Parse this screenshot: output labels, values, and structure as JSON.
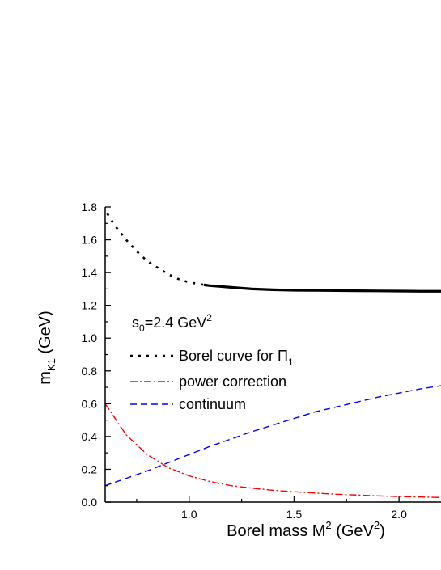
{
  "chart_data": {
    "type": "line",
    "title": "",
    "xlabel": "Borel mass M",
    "xlabel_sup": "2",
    "xlabel_unit_open": " (GeV",
    "xlabel_unit_sup": "2",
    "xlabel_unit_close": ")",
    "ylabel": "m",
    "ylabel_sub": "K1",
    "ylabel_unit": " (GeV)",
    "xlim": [
      0.6,
      2.2
    ],
    "ylim": [
      0.0,
      1.8
    ],
    "x_ticks": [
      1.0,
      1.5,
      2.0
    ],
    "x_tick_labels": [
      "1.0",
      "1.5",
      "2.0"
    ],
    "y_ticks": [
      0.0,
      0.2,
      0.4,
      0.6,
      0.8,
      1.0,
      1.2,
      1.4,
      1.6,
      1.8
    ],
    "y_tick_labels": [
      "0.0",
      "0.2",
      "0.4",
      "0.6",
      "0.8",
      "1.0",
      "1.2",
      "1.4",
      "1.6",
      "1.8"
    ],
    "annotation": {
      "s_base": "s",
      "s_sub": "0",
      "s_value": "=2.4 GeV",
      "s_sup": "2"
    },
    "series": [
      {
        "name": "Borel curve for Π",
        "name_sub": "1",
        "color": "#000000",
        "style": "dotted-then-solid",
        "solid_from_x": 1.07,
        "x": [
          0.61,
          0.65,
          0.7,
          0.75,
          0.8,
          0.85,
          0.9,
          0.95,
          1.0,
          1.05,
          1.07,
          1.1,
          1.2,
          1.3,
          1.4,
          1.5,
          1.6,
          1.7,
          1.8,
          1.9,
          2.0,
          2.1,
          2.2
        ],
        "values": [
          1.76,
          1.68,
          1.6,
          1.53,
          1.47,
          1.43,
          1.39,
          1.36,
          1.34,
          1.33,
          1.325,
          1.32,
          1.31,
          1.3,
          1.295,
          1.292,
          1.291,
          1.29,
          1.289,
          1.288,
          1.287,
          1.286,
          1.286
        ]
      },
      {
        "name": "power correction",
        "color": "#ff0000",
        "style": "dash-dot",
        "x": [
          0.6,
          0.7,
          0.8,
          0.9,
          1.0,
          1.1,
          1.2,
          1.3,
          1.4,
          1.5,
          1.6,
          1.7,
          1.8,
          1.9,
          2.0,
          2.1,
          2.2
        ],
        "values": [
          0.6,
          0.41,
          0.29,
          0.21,
          0.16,
          0.125,
          0.1,
          0.085,
          0.072,
          0.063,
          0.055,
          0.048,
          0.043,
          0.038,
          0.034,
          0.031,
          0.028
        ]
      },
      {
        "name": "continuum",
        "color": "#0000ff",
        "style": "dashed",
        "x": [
          0.6,
          0.7,
          0.8,
          0.9,
          1.0,
          1.1,
          1.2,
          1.3,
          1.4,
          1.5,
          1.6,
          1.7,
          1.8,
          1.9,
          2.0,
          2.1,
          2.2
        ],
        "values": [
          0.1,
          0.145,
          0.19,
          0.24,
          0.29,
          0.34,
          0.385,
          0.43,
          0.47,
          0.51,
          0.55,
          0.58,
          0.61,
          0.64,
          0.665,
          0.69,
          0.71
        ]
      }
    ],
    "legend_position": "middle-left, inside plot"
  }
}
